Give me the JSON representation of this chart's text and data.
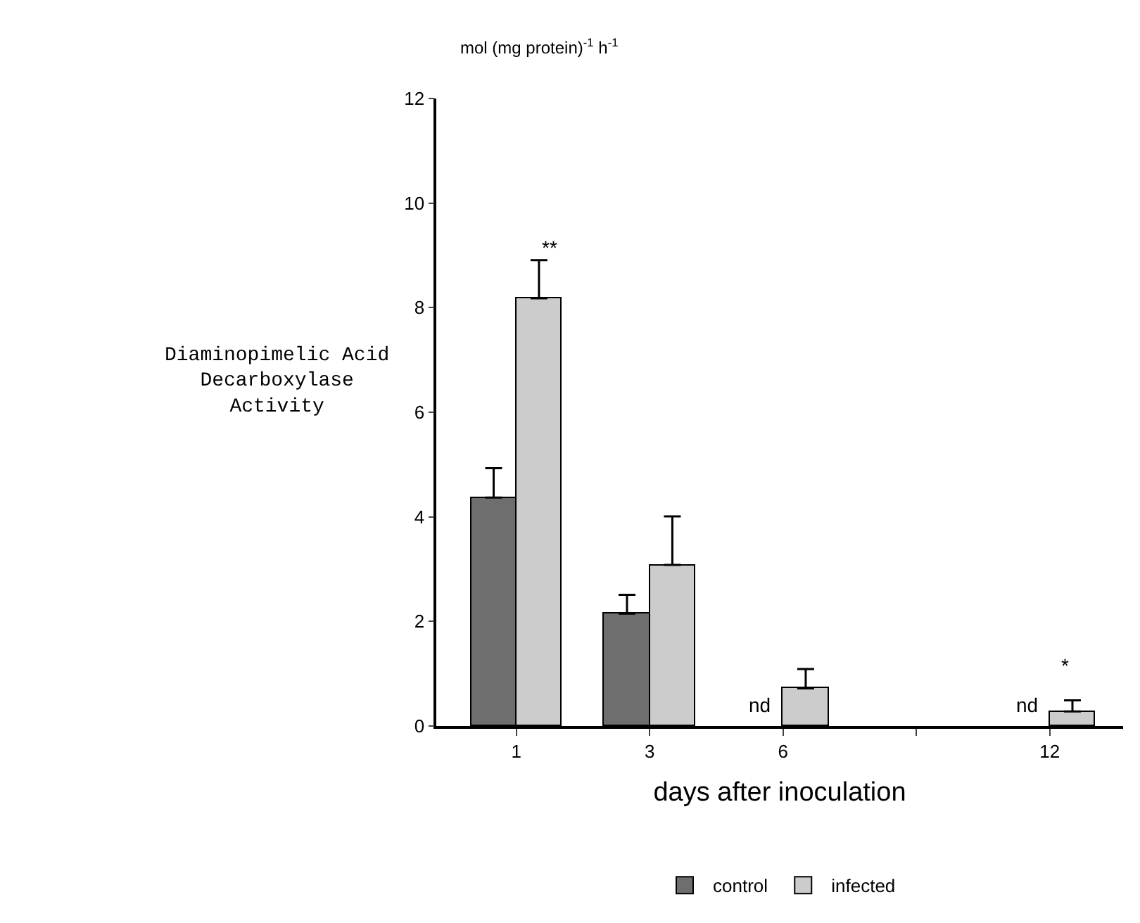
{
  "chart_data": {
    "type": "bar",
    "subtitle": "mol (mg protein)$^{-1}$ h$^{-1}$",
    "ylabel": "Diaminopimelic Acid\nDecarboxylase\nActivity",
    "xlabel": "days after inoculation",
    "categories": [
      "1",
      "3",
      "6",
      null,
      "12"
    ],
    "series": [
      {
        "name": "control",
        "color": "#6e6e6e",
        "values": [
          4.37,
          2.15,
          null,
          null,
          null
        ],
        "errors": [
          [
            4.37,
            4.93
          ],
          [
            2.15,
            2.51
          ],
          null,
          null,
          null
        ]
      },
      {
        "name": "infected",
        "color": "#cccccc",
        "values": [
          8.18,
          3.08,
          0.72,
          null,
          0.28
        ],
        "errors": [
          [
            8.18,
            8.91
          ],
          [
            3.08,
            4.01
          ],
          [
            0.72,
            1.09
          ],
          null,
          [
            0.28,
            0.49
          ]
        ]
      }
    ],
    "ylim": [
      0,
      12
    ],
    "yticks": [
      0,
      2,
      4,
      6,
      8,
      10,
      12
    ],
    "annotations": [
      "**",
      "*",
      {
        "text": "nd",
        "x": "6",
        "y": 0.4
      },
      {
        "text": "nd",
        "x": "12",
        "y": 0.4
      }
    ],
    "legend": "bottom"
  }
}
